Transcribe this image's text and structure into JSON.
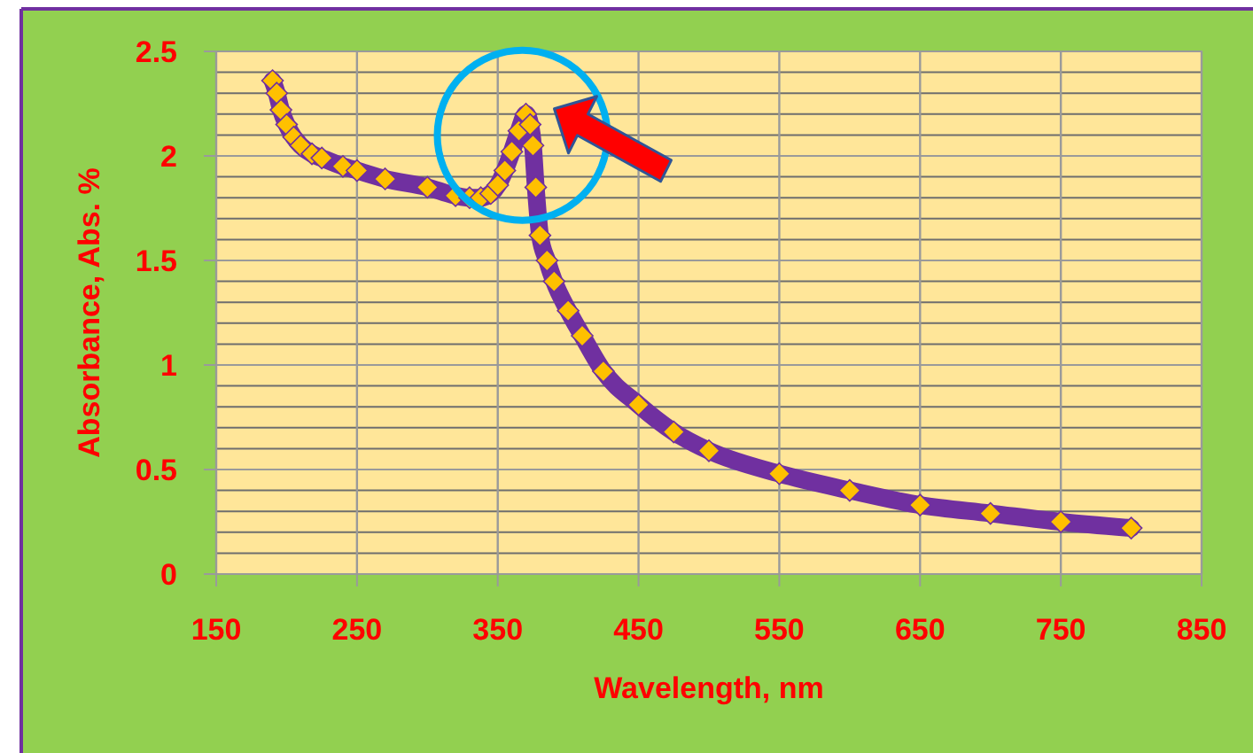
{
  "chart_data": {
    "type": "line",
    "xlabel": "Wavelength, nm",
    "ylabel": "Absorbance, Abs. %",
    "series": [
      {
        "color": "#7030a0",
        "x": [
          190,
          193,
          196,
          200,
          205,
          210,
          218,
          225,
          240,
          250,
          270,
          300,
          320,
          330,
          338,
          345,
          350,
          355,
          360,
          365,
          370,
          373,
          375,
          377,
          380,
          385,
          390,
          400,
          410,
          425,
          450,
          475,
          500,
          550,
          600,
          650,
          700,
          750,
          800
        ],
        "values": [
          2.36,
          2.3,
          2.22,
          2.15,
          2.09,
          2.05,
          2.01,
          1.99,
          1.95,
          1.93,
          1.89,
          1.85,
          1.81,
          1.8,
          1.8,
          1.82,
          1.86,
          1.93,
          2.02,
          2.12,
          2.2,
          2.15,
          2.05,
          1.85,
          1.62,
          1.5,
          1.4,
          1.26,
          1.14,
          0.97,
          0.81,
          0.68,
          0.59,
          0.48,
          0.4,
          0.33,
          0.29,
          0.25,
          0.22
        ]
      }
    ],
    "xlim": [
      150,
      850
    ],
    "xticks": [
      150,
      250,
      350,
      450,
      550,
      650,
      750,
      850
    ],
    "ylim": [
      0,
      2.5
    ],
    "yticks": [
      0,
      0.5,
      1,
      1.5,
      2,
      2.5
    ],
    "grid": true,
    "marker": "diamond",
    "line_style": "solid"
  }
}
